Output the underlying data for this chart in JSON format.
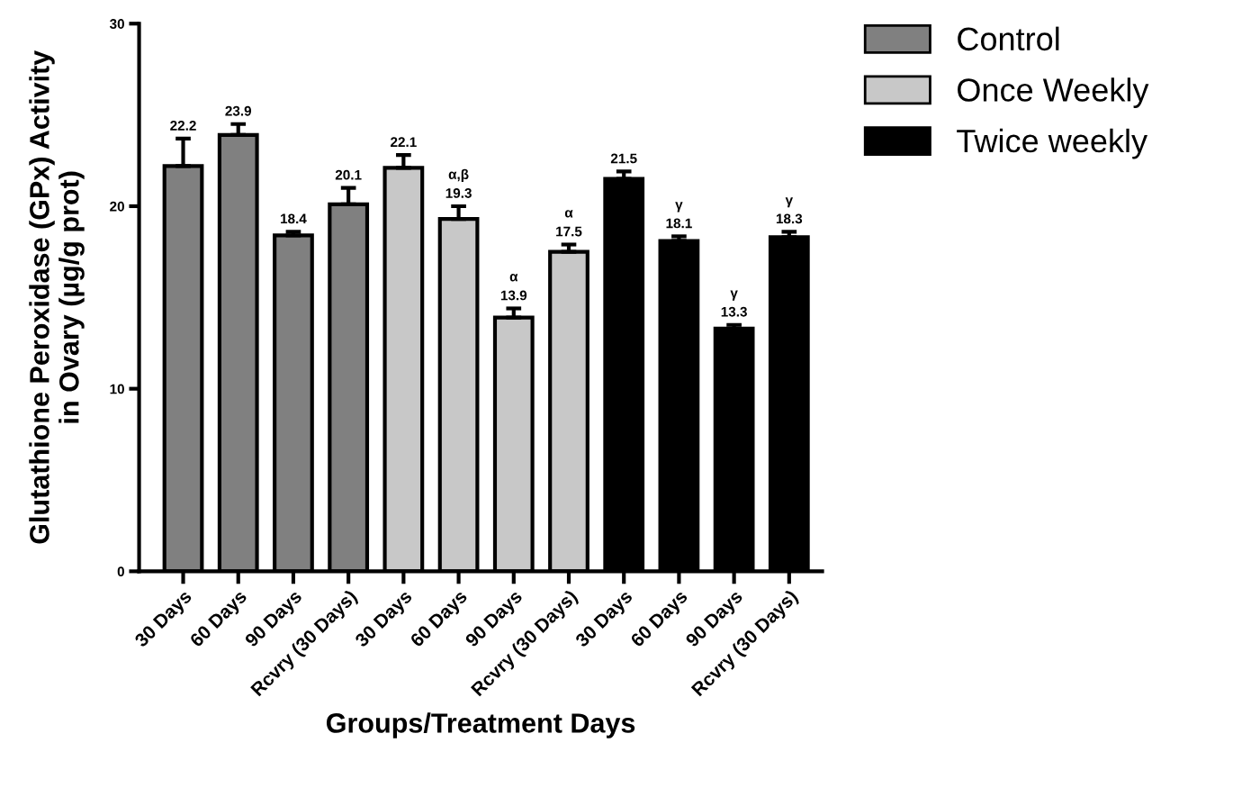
{
  "chart_data": {
    "type": "bar",
    "xlabel": "Groups/Treatment Days",
    "ylabel": "Glutathione Peroxidase (GPx) Activity\nin Ovary (µg/g prot)",
    "categories": [
      "30 Days",
      "60 Days",
      "90 Days",
      "Rcvry (30 Days)",
      "30 Days",
      "60 Days",
      "90 Days",
      "Rcvry (30 Days)",
      "30 Days",
      "60 Days",
      "90 Days",
      "Rcvry (30 Days)"
    ],
    "series": [
      {
        "name": "Control",
        "color": "#808080",
        "values": [
          22.2,
          23.9,
          18.4,
          20.1,
          null,
          null,
          null,
          null,
          null,
          null,
          null,
          null
        ],
        "errors": [
          1.5,
          0.6,
          0.2,
          0.9,
          null,
          null,
          null,
          null,
          null,
          null,
          null,
          null
        ],
        "value_labels": [
          "22.2",
          "23.9",
          "18.4",
          "20.1",
          null,
          null,
          null,
          null,
          null,
          null,
          null,
          null
        ]
      },
      {
        "name": "Once Weekly",
        "color": "#c8c8c8",
        "values": [
          null,
          null,
          null,
          null,
          22.1,
          19.3,
          13.9,
          17.5,
          null,
          null,
          null,
          null
        ],
        "errors": [
          null,
          null,
          null,
          null,
          0.7,
          0.7,
          0.5,
          0.4,
          null,
          null,
          null,
          null
        ],
        "value_labels": [
          null,
          null,
          null,
          null,
          "22.1",
          "α,β\n19.3",
          "α\n13.9",
          "α\n17.5",
          null,
          null,
          null,
          null
        ]
      },
      {
        "name": "Twice weekly",
        "color": "#000000",
        "values": [
          null,
          null,
          null,
          null,
          null,
          null,
          null,
          null,
          21.5,
          18.1,
          13.3,
          18.3
        ],
        "errors": [
          null,
          null,
          null,
          null,
          null,
          null,
          null,
          null,
          0.4,
          0.25,
          0.2,
          0.3
        ],
        "value_labels": [
          null,
          null,
          null,
          null,
          null,
          null,
          null,
          null,
          "21.5",
          "γ\n18.1",
          "γ\n13.3",
          "γ\n18.3"
        ]
      }
    ],
    "ylim": [
      0,
      30
    ],
    "yticks": [
      0,
      10,
      20,
      30
    ],
    "grid": false,
    "legend": "top right"
  }
}
